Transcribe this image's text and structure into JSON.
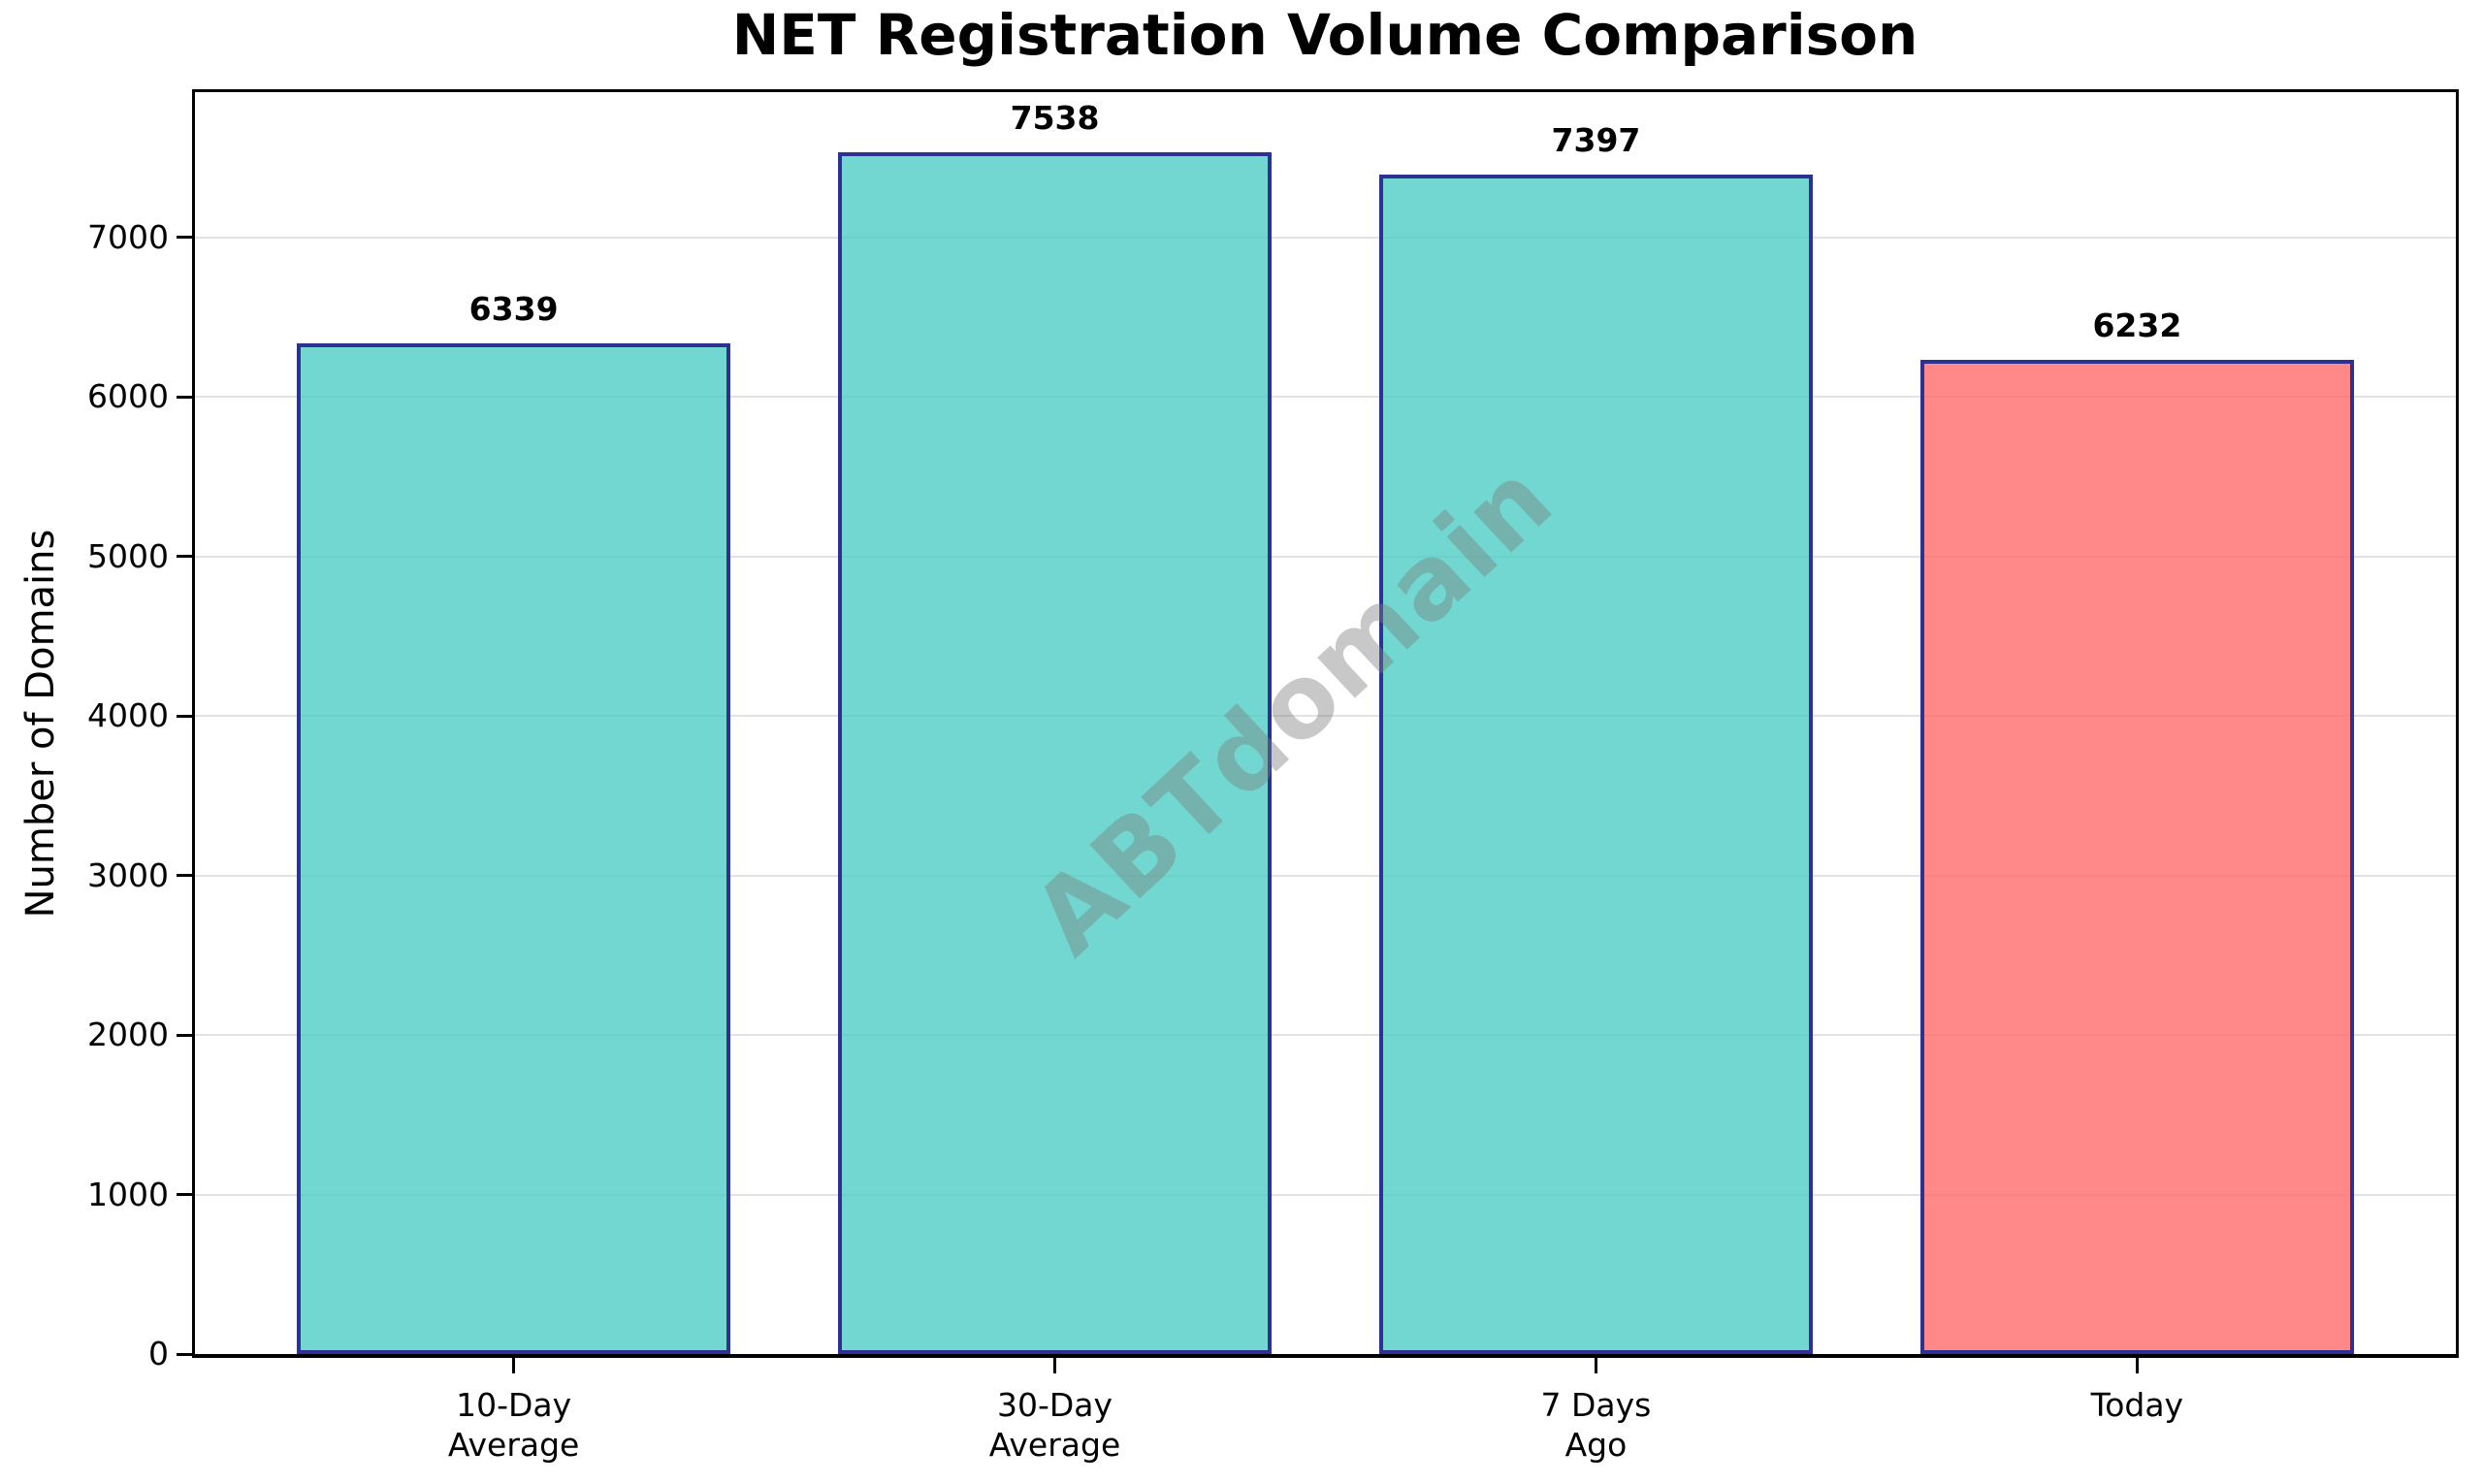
{
  "chart_data": {
    "type": "bar",
    "title": "NET Registration Volume Comparison",
    "ylabel": "Number of Domains",
    "xlabel": "",
    "categories": [
      "10-Day\nAverage",
      "30-Day\nAverage",
      "7 Days\nAgo",
      "Today"
    ],
    "values": [
      6339,
      7538,
      7397,
      6232
    ],
    "value_labels": [
      "6339",
      "7538",
      "7397",
      "6232"
    ],
    "bar_fills": [
      "rgba(78,205,196,0.8)",
      "rgba(78,205,196,0.8)",
      "rgba(78,205,196,0.8)",
      "rgba(255,107,107,0.8)"
    ],
    "bar_edge_color": "#2e3192",
    "ytick_values": [
      0,
      1000,
      2000,
      3000,
      4000,
      5000,
      6000,
      7000
    ],
    "ylim": [
      0,
      7912
    ],
    "grid": "horizontal",
    "grid_color": "#e2e2e2",
    "legend": "none",
    "watermark": "ABTdomain"
  }
}
